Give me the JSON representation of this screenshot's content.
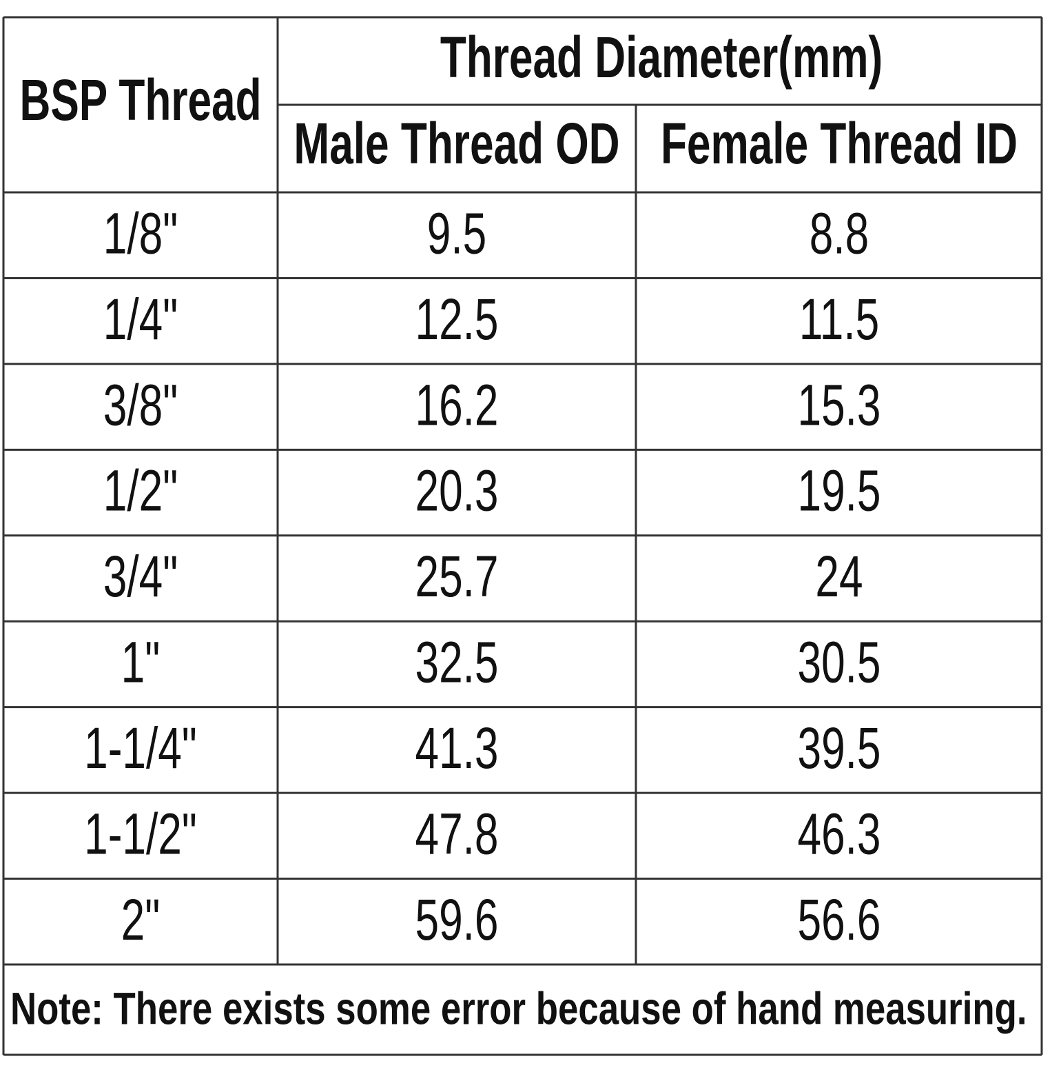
{
  "header": {
    "first": "BSP Thread",
    "group": "Thread Diameter(mm)",
    "second": "Male Thread OD",
    "third": "Female Thread ID"
  },
  "table": {
    "rows": [
      [
        "1/8\"",
        "9.5",
        "8.8"
      ],
      [
        "1/4\"",
        "12.5",
        "11.5"
      ],
      [
        "3/8\"",
        "16.2",
        "15.3"
      ],
      [
        "1/2\"",
        "20.3",
        "19.5"
      ],
      [
        "3/4\"",
        "25.7",
        "24"
      ],
      [
        "1\"",
        "32.5",
        "30.5"
      ],
      [
        "1-1/4\"",
        "41.3",
        "39.5"
      ],
      [
        "1-1/2\"",
        "47.8",
        "46.3"
      ],
      [
        "2\"",
        "59.6",
        "56.6"
      ]
    ]
  },
  "note": "Note: There exists some error because of hand measuring."
}
